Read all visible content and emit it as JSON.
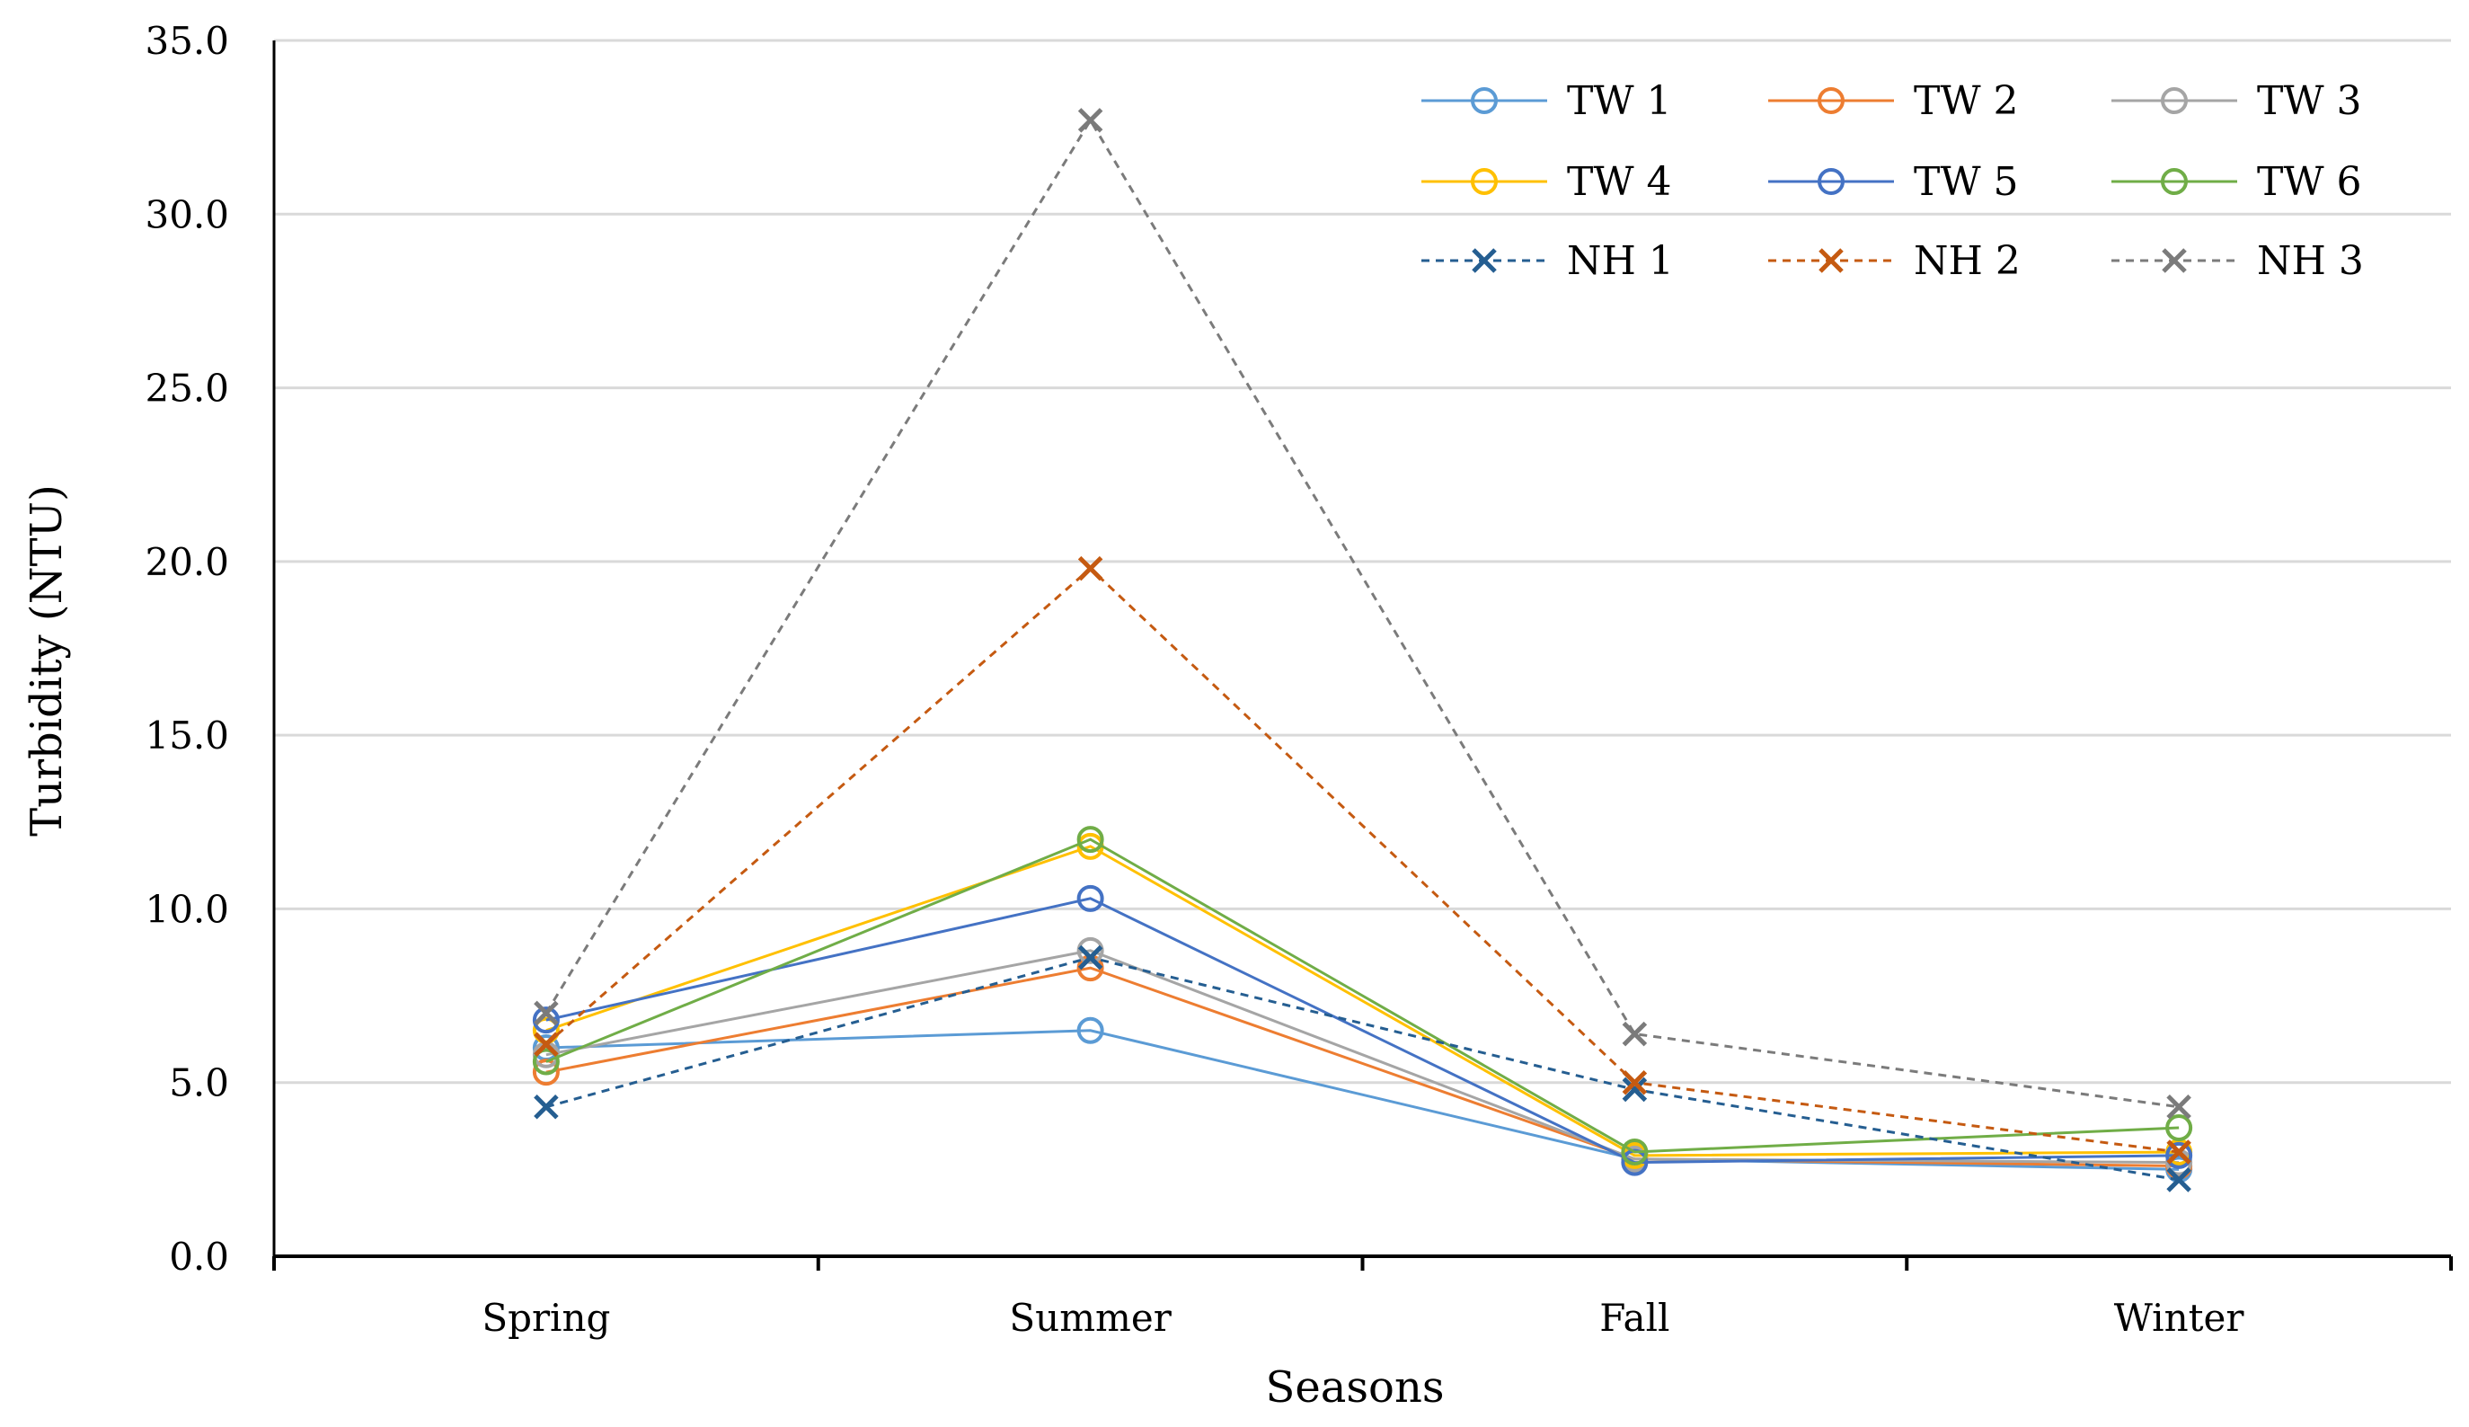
{
  "chart_data": {
    "type": "line",
    "title": "",
    "xlabel": "Seasons",
    "ylabel": "Turbidity (NTU)",
    "categories": [
      "Spring",
      "Summer",
      "Fall",
      "Winter"
    ],
    "ylim": [
      0,
      35
    ],
    "yticks": [
      "0.0",
      "5.0",
      "10.0",
      "15.0",
      "20.0",
      "25.0",
      "30.0",
      "35.0"
    ],
    "ytick_values": [
      0,
      5,
      10,
      15,
      20,
      25,
      30,
      35
    ],
    "grid": true,
    "legend_position": "top-right",
    "series": [
      {
        "name": "TW 1",
        "color": "#5B9BD5",
        "marker": "circle",
        "dash": "solid",
        "values": [
          6.0,
          6.5,
          2.8,
          2.5
        ]
      },
      {
        "name": "TW 2",
        "color": "#ED7D31",
        "marker": "circle",
        "dash": "solid",
        "values": [
          5.3,
          8.3,
          2.8,
          2.6
        ]
      },
      {
        "name": "TW 3",
        "color": "#A5A5A5",
        "marker": "circle",
        "dash": "solid",
        "values": [
          5.8,
          8.8,
          2.8,
          2.7
        ]
      },
      {
        "name": "TW 4",
        "color": "#FFC000",
        "marker": "circle",
        "dash": "solid",
        "values": [
          6.5,
          11.8,
          2.9,
          3.0
        ]
      },
      {
        "name": "TW 5",
        "color": "#4472C4",
        "marker": "circle",
        "dash": "solid",
        "values": [
          6.8,
          10.3,
          2.7,
          2.9
        ]
      },
      {
        "name": "TW 6",
        "color": "#70AD47",
        "marker": "circle",
        "dash": "solid",
        "values": [
          5.6,
          12.0,
          3.0,
          3.7
        ]
      },
      {
        "name": "NH 1",
        "color": "#255E91",
        "marker": "x",
        "dash": "dash",
        "values": [
          4.3,
          8.6,
          4.8,
          2.2
        ]
      },
      {
        "name": "NH 2",
        "color": "#C55A11",
        "marker": "x",
        "dash": "dash",
        "values": [
          6.1,
          19.8,
          5.0,
          3.0
        ]
      },
      {
        "name": "NH 3",
        "color": "#7B7B7B",
        "marker": "x",
        "dash": "dash",
        "values": [
          7.0,
          32.7,
          6.4,
          4.3
        ]
      }
    ]
  }
}
